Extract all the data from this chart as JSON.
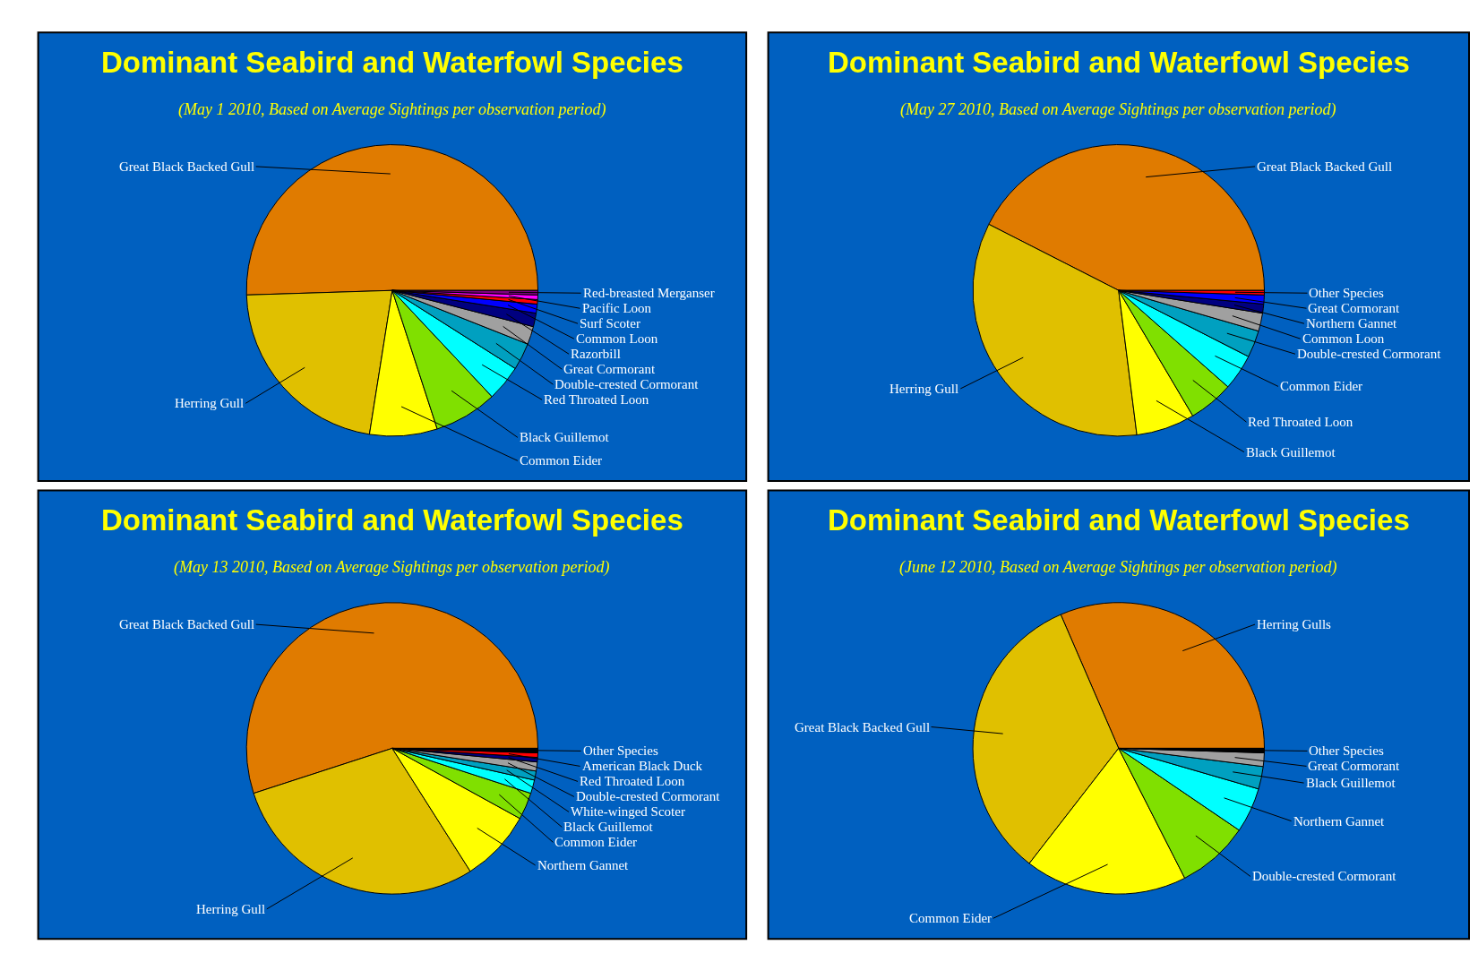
{
  "chart_data": [
    {
      "type": "pie",
      "title": "Dominant Seabird and Waterfowl Species",
      "subtitle": "(May 1 2010, Based on Average Sightings per observation period)",
      "categories": [
        "Great Black Backed Gull",
        "Herring Gull",
        "Common Eider",
        "Black Guillemot",
        "Red Throated Loon",
        "Double-crested Cormorant",
        "Great Cormorant",
        "Razorbill",
        "Common Loon",
        "Surf Scoter",
        "Pacific Loon",
        "Red-breasted Merganser"
      ],
      "values": [
        50.5,
        22,
        7.5,
        7,
        4,
        3,
        2,
        1.5,
        1,
        0.5,
        0.5,
        0.5
      ],
      "colors": [
        "#e07b00",
        "#e0c000",
        "#ffff00",
        "#80e000",
        "#00ffff",
        "#00a0c0",
        "#a0a0a0",
        "#000080",
        "#0000ff",
        "#ff0000",
        "#ff00ff",
        "#800080"
      ]
    },
    {
      "type": "pie",
      "title": "Dominant Seabird and Waterfowl Species",
      "subtitle": "(May 27 2010, Based on Average Sightings per observation period)",
      "categories": [
        "Great Black Backed Gull",
        "Herring Gull",
        "Black Guillemot",
        "Red Throated Loon",
        "Common Eider",
        "Double-crested Cormorant",
        "Common Loon",
        "Northern Gannet",
        "Great Cormorant",
        "Other Species"
      ],
      "values": [
        42.5,
        34.5,
        6.5,
        5,
        4,
        3,
        2,
        1,
        1,
        0.5
      ],
      "colors": [
        "#e07b00",
        "#e0c000",
        "#ffff00",
        "#80e000",
        "#00ffff",
        "#00a0c0",
        "#a0a0a0",
        "#000080",
        "#0000ff",
        "#ff0000"
      ]
    },
    {
      "type": "pie",
      "title": "Dominant Seabird and Waterfowl Species",
      "subtitle": "(May 13 2010, Based on Average Sightings per observation period)",
      "categories": [
        "Great Black Backed Gull",
        "Herring Gull",
        "Northern Gannet",
        "Common Eider",
        "Black Guillemot",
        "White-winged Scoter",
        "Double-crested Cormorant",
        "Red Throated Loon",
        "American Black Duck",
        "Other Species"
      ],
      "values": [
        55,
        29,
        8,
        3,
        1.5,
        1,
        1,
        0.5,
        0.5,
        0.5
      ],
      "colors": [
        "#e07b00",
        "#e0c000",
        "#ffff00",
        "#80e000",
        "#00ffff",
        "#00a0c0",
        "#a0a0a0",
        "#000080",
        "#ff0000",
        "#000000"
      ]
    },
    {
      "type": "pie",
      "title": "Dominant Seabird and Waterfowl Species",
      "subtitle": "(June 12 2010, Based on Average Sightings per observation period)",
      "categories": [
        "Herring Gulls",
        "Great Black Backed Gull",
        "Common Eider",
        "Double-crested Cormorant",
        "Northern Gannet",
        "Black Guillemot",
        "Great Cormorant",
        "Other Species"
      ],
      "values": [
        31.5,
        33,
        18,
        8,
        5,
        2.5,
        1.5,
        0.5
      ],
      "colors": [
        "#e07b00",
        "#e0c000",
        "#ffff00",
        "#80e000",
        "#00ffff",
        "#00a0c0",
        "#a0a0a0",
        "#000000"
      ]
    }
  ]
}
